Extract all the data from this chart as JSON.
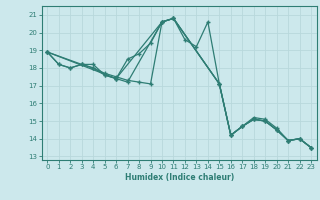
{
  "title": "",
  "xlabel": "Humidex (Indice chaleur)",
  "ylabel": "",
  "xlim": [
    -0.5,
    23.5
  ],
  "ylim": [
    12.8,
    21.5
  ],
  "yticks": [
    13,
    14,
    15,
    16,
    17,
    18,
    19,
    20,
    21
  ],
  "xticks": [
    0,
    1,
    2,
    3,
    4,
    5,
    6,
    7,
    8,
    9,
    10,
    11,
    12,
    13,
    14,
    15,
    16,
    17,
    18,
    19,
    20,
    21,
    22,
    23
  ],
  "bg_color": "#cce8ec",
  "line_color": "#2e7d74",
  "grid_color": "#b8d8dc",
  "lines": [
    {
      "x": [
        0,
        1,
        2,
        3,
        4,
        5,
        6,
        7,
        10,
        11,
        12,
        13,
        14,
        15,
        16,
        17,
        18,
        19,
        20,
        21,
        22,
        23
      ],
      "y": [
        18.9,
        18.2,
        18.0,
        18.2,
        18.0,
        17.6,
        17.4,
        17.2,
        20.6,
        20.8,
        19.6,
        19.2,
        20.6,
        17.1,
        14.2,
        14.7,
        15.1,
        15.0,
        14.5,
        13.9,
        14.0,
        13.5
      ]
    },
    {
      "x": [
        0,
        6,
        7,
        8,
        9,
        10,
        11,
        15,
        16,
        17,
        18,
        19,
        20,
        21,
        22,
        23
      ],
      "y": [
        18.9,
        17.4,
        18.5,
        18.8,
        19.4,
        20.6,
        20.8,
        17.1,
        14.2,
        14.7,
        15.1,
        15.0,
        14.5,
        13.9,
        14.0,
        13.5
      ]
    },
    {
      "x": [
        0,
        3,
        4,
        5,
        6,
        10,
        11,
        15,
        16,
        17,
        18,
        19,
        20,
        21,
        22,
        23
      ],
      "y": [
        18.9,
        18.2,
        18.2,
        17.6,
        17.4,
        20.6,
        20.8,
        17.1,
        14.2,
        14.7,
        15.1,
        15.0,
        14.5,
        13.9,
        14.0,
        13.5
      ]
    },
    {
      "x": [
        0,
        1,
        2,
        3,
        4,
        5,
        6,
        7,
        8,
        9,
        10,
        11,
        15,
        16,
        17,
        18,
        19,
        20,
        21,
        22,
        23
      ],
      "y": [
        18.9,
        18.2,
        18.0,
        18.2,
        18.0,
        17.7,
        17.5,
        17.3,
        17.2,
        17.1,
        20.6,
        20.8,
        17.1,
        14.2,
        14.7,
        15.2,
        15.1,
        14.6,
        13.9,
        14.0,
        13.5
      ]
    }
  ]
}
